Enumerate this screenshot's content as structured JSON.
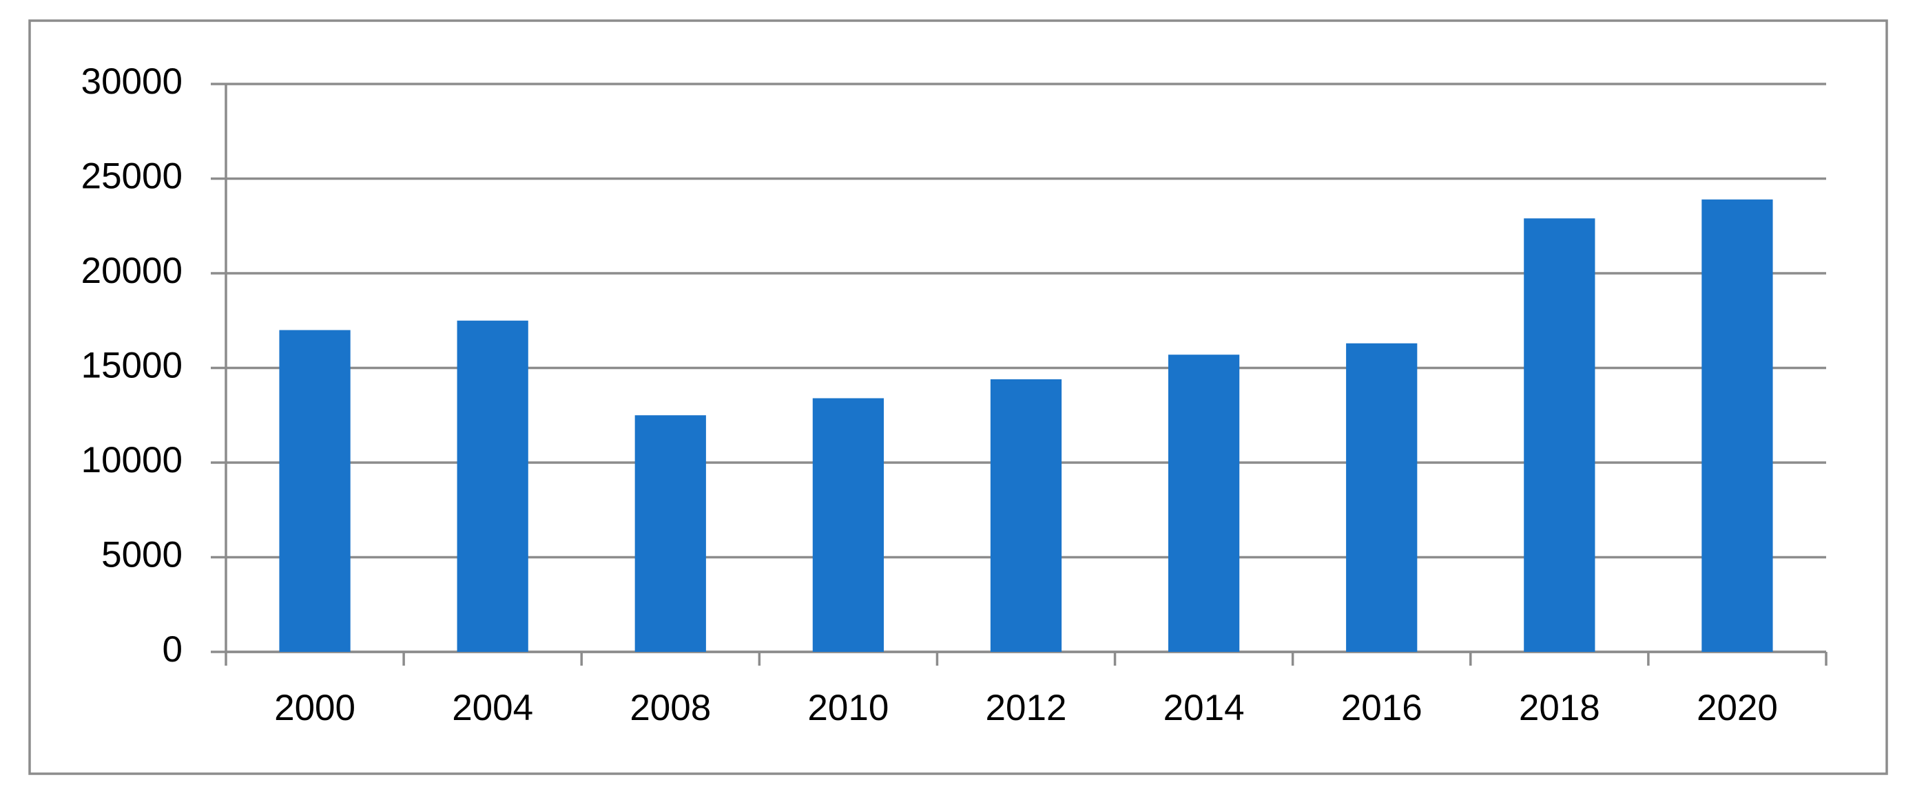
{
  "chart_data": {
    "type": "bar",
    "categories": [
      "2000",
      "2004",
      "2008",
      "2010",
      "2012",
      "2014",
      "2016",
      "2018",
      "2020"
    ],
    "values": [
      17000,
      17500,
      12500,
      13400,
      14400,
      15700,
      16300,
      22900,
      23900
    ],
    "color": "#1a74ca",
    "ylim": [
      0,
      30000
    ],
    "yticks": [
      0,
      5000,
      10000,
      15000,
      20000,
      25000,
      30000
    ],
    "grid": true
  }
}
